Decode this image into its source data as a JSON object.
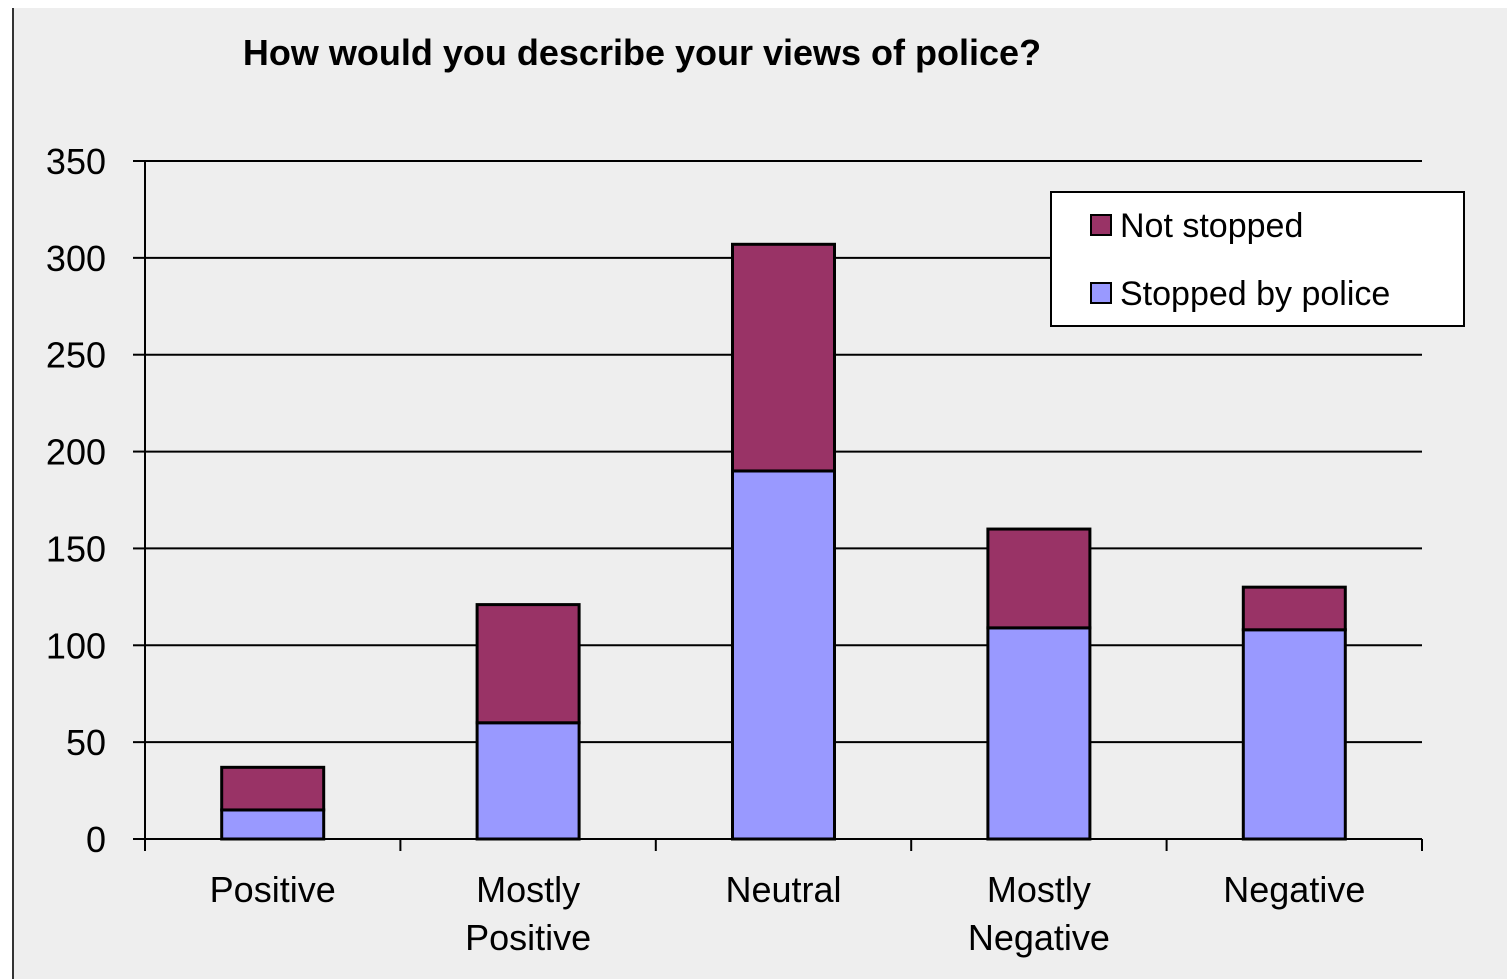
{
  "chart_data": {
    "type": "bar",
    "stacked": true,
    "title": "How would you describe your views of police?",
    "xlabel": "",
    "ylabel": "",
    "categories": [
      [
        "Positive"
      ],
      [
        "Mostly",
        "Positive"
      ],
      [
        "Neutral"
      ],
      [
        "Mostly",
        "Negative"
      ],
      [
        "Negative"
      ]
    ],
    "series": [
      {
        "name": "Stopped by police",
        "color": "#9999ff",
        "values": [
          15,
          60,
          190,
          109,
          108
        ]
      },
      {
        "name": "Not stopped",
        "color": "#993366",
        "values": [
          22,
          61,
          117,
          51,
          22
        ]
      }
    ],
    "ylim": [
      0,
      350
    ],
    "yticks": [
      0,
      50,
      100,
      150,
      200,
      250,
      300,
      350
    ],
    "grid": true,
    "legend_position": "top-right",
    "legend_order": [
      "Not stopped",
      "Stopped by police"
    ]
  }
}
